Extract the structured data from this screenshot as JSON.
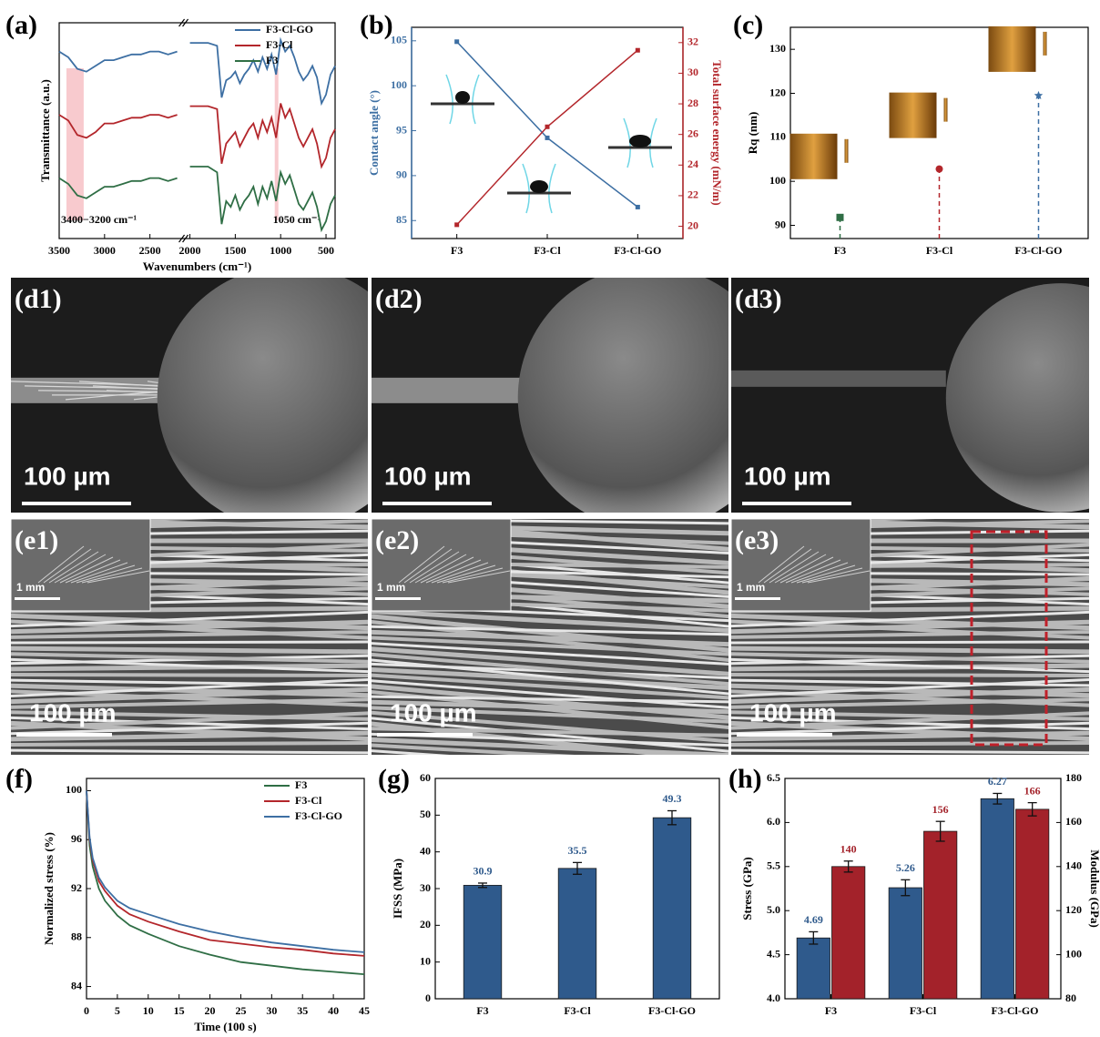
{
  "chart_data": [
    {
      "label": "(a)",
      "type": "line",
      "x_label": "Wavenumbers (cm⁻¹)",
      "y_label": "Transmittance (a.u.)",
      "x": [
        3500,
        3400,
        3300,
        3200,
        3100,
        3000,
        2900,
        2800,
        2700,
        2600,
        2500,
        2400,
        2300,
        2200,
        2000,
        1900,
        1800,
        1700,
        1650,
        1600,
        1550,
        1500,
        1450,
        1400,
        1350,
        1300,
        1250,
        1200,
        1150,
        1100,
        1050,
        1000,
        950,
        900,
        850,
        800,
        750,
        700,
        650,
        600,
        550,
        500,
        450,
        400
      ],
      "xlim": [
        3500,
        400
      ],
      "x_break": [
        2200,
        2000
      ],
      "xticks": [
        3500,
        3000,
        2500,
        2000,
        1500,
        1000,
        500
      ],
      "ylim": [
        15,
        90
      ],
      "highlights": [
        {
          "range": [
            3420,
            3230
          ],
          "label": "3400−3200 cm⁻¹"
        },
        {
          "range": [
            1065,
            1040
          ],
          "label": "1050 cm⁻¹"
        }
      ],
      "legend": "upper right",
      "series": [
        {
          "name": "F3-Cl-GO",
          "color": "#3d6fa3",
          "values": [
            80,
            78,
            74,
            73,
            75,
            77,
            77,
            78,
            79,
            79,
            80,
            80,
            79,
            80,
            83,
            83,
            83,
            82,
            64,
            70,
            71,
            73,
            69,
            72,
            74,
            77,
            73,
            78,
            74,
            79,
            72,
            84,
            80,
            82,
            78,
            73,
            70,
            72,
            75,
            71,
            62,
            65,
            72,
            75
          ]
        },
        {
          "name": "F3-Cl",
          "color": "#b3262b",
          "values": [
            58,
            56,
            51,
            50,
            52,
            55,
            55,
            56,
            57,
            57,
            58,
            58,
            57,
            58,
            61,
            61,
            61,
            60,
            41,
            48,
            50,
            52,
            47,
            50,
            53,
            55,
            50,
            56,
            52,
            57,
            50,
            62,
            57,
            60,
            55,
            50,
            47,
            50,
            53,
            48,
            40,
            43,
            50,
            53
          ]
        },
        {
          "name": "F3",
          "color": "#2f6e45",
          "values": [
            36,
            34,
            30,
            29,
            31,
            33,
            33,
            34,
            35,
            35,
            36,
            36,
            35,
            36,
            40,
            40,
            40,
            38,
            20,
            28,
            26,
            30,
            25,
            28,
            30,
            33,
            27,
            33,
            29,
            35,
            28,
            38,
            34,
            37,
            32,
            27,
            25,
            28,
            31,
            26,
            18,
            21,
            27,
            30
          ]
        }
      ]
    },
    {
      "label": "(b)",
      "type": "line",
      "categories": [
        "F3",
        "F3-Cl",
        "F3-Cl-GO"
      ],
      "y_label": "Contact angle (°)",
      "y2_label": "Total surface energy (mN/m)",
      "ylim": [
        83,
        106.5
      ],
      "yticks": [
        85,
        90,
        95,
        100,
        105
      ],
      "y2lim": [
        19.2,
        33
      ],
      "y2ticks": [
        20,
        22,
        24,
        26,
        28,
        30,
        32
      ],
      "series": [
        {
          "color": "#3d6fa3",
          "marker": "square",
          "values": [
            104.9,
            94.2,
            86.5
          ]
        },
        {
          "color": "#b3262b",
          "marker": "square",
          "axis": "y2",
          "values": [
            20.1,
            26.5,
            31.5
          ]
        }
      ]
    },
    {
      "label": "(c)",
      "type": "lollipop",
      "categories": [
        "F3",
        "F3-Cl",
        "F3-Cl-GO"
      ],
      "y_label": "Rq (nm)",
      "ylim": [
        87,
        135
      ],
      "yticks": [
        90,
        100,
        110,
        120,
        130
      ],
      "values": [
        91.8,
        102.8,
        119.5
      ],
      "colors": [
        "#2f6e45",
        "#b3262b",
        "#3d6fa3"
      ],
      "markers": [
        "square",
        "circle",
        "star"
      ]
    },
    {
      "label": "(f)",
      "type": "line",
      "x_label": "Time (100 s)",
      "y_label": "Normalized stress (%)",
      "x": [
        0,
        0.5,
        1,
        2,
        3,
        5,
        7,
        10,
        15,
        20,
        25,
        30,
        35,
        40,
        45
      ],
      "xlim": [
        0,
        45
      ],
      "xticks": [
        0,
        5,
        10,
        15,
        20,
        25,
        30,
        35,
        40,
        45
      ],
      "ylim": [
        83,
        101
      ],
      "yticks": [
        84,
        88,
        92,
        96,
        100
      ],
      "legend": "upper right",
      "series": [
        {
          "name": "F3",
          "color": "#2f6e45",
          "values": [
            100,
            95.5,
            93.8,
            92,
            91,
            89.8,
            89,
            88.3,
            87.3,
            86.6,
            86,
            85.7,
            85.4,
            85.2,
            85
          ]
        },
        {
          "name": "F3-Cl",
          "color": "#b3262b",
          "values": [
            100,
            96,
            94.3,
            92.6,
            91.8,
            90.6,
            89.9,
            89.3,
            88.5,
            87.8,
            87.5,
            87.2,
            87,
            86.7,
            86.5
          ]
        },
        {
          "name": "F3-Cl-GO",
          "color": "#3d6fa3",
          "values": [
            100,
            96.2,
            94.5,
            92.9,
            92.1,
            91,
            90.4,
            89.9,
            89.1,
            88.5,
            88,
            87.6,
            87.3,
            87,
            86.8
          ]
        }
      ]
    },
    {
      "label": "(g)",
      "type": "bar",
      "categories": [
        "F3",
        "F3-Cl",
        "F3-Cl-GO"
      ],
      "y_label": "IFSS (MPa)",
      "ylim": [
        0,
        60
      ],
      "yticks": [
        0,
        10,
        20,
        30,
        40,
        50,
        60
      ],
      "series": [
        {
          "color": "#2f5a8c",
          "label_color": "#2f5a8c",
          "values": [
            30.9,
            35.5,
            49.3
          ],
          "errors": [
            0.6,
            1.6,
            1.9
          ]
        }
      ]
    },
    {
      "label": "(h)",
      "type": "bar",
      "categories": [
        "F3",
        "F3-Cl",
        "F3-Cl-GO"
      ],
      "y_label": "Stress (GPa)",
      "y2_label": "Modulus (GPa)",
      "ylim": [
        4,
        6.5
      ],
      "yticks": [
        {
          "value": 4,
          "label": "4.0"
        },
        4.5,
        {
          "value": 5,
          "label": "5.0"
        },
        5.5,
        {
          "value": 6,
          "label": "6.0"
        },
        6.5
      ],
      "y2lim": [
        80,
        180
      ],
      "y2ticks": [
        80,
        100,
        120,
        140,
        160,
        180
      ],
      "series": [
        {
          "color": "#2f5a8c",
          "label_color": "#2f5a8c",
          "values": [
            4.69,
            5.26,
            6.27
          ],
          "errors": [
            0.07,
            0.09,
            0.06
          ]
        },
        {
          "color": "#a3222a",
          "label_color": "#a3222a",
          "axis": "y2",
          "values": [
            140,
            156,
            166
          ],
          "errors": [
            2.5,
            4.5,
            3
          ]
        }
      ]
    }
  ],
  "micrographs": [
    {
      "label": "(d1)",
      "scale_bar": "100 µm"
    },
    {
      "label": "(d2)",
      "scale_bar": "100 µm"
    },
    {
      "label": "(d3)",
      "scale_bar": "100 µm"
    },
    {
      "label": "(e1)",
      "inset_scale_bar": "1 mm",
      "scale_bar": "100 µm"
    },
    {
      "label": "(e2)",
      "inset_scale_bar": "1 mm",
      "scale_bar": "100 µm"
    },
    {
      "label": "(e3)",
      "inset_scale_bar": "1 mm",
      "scale_bar": "100 µm"
    }
  ]
}
